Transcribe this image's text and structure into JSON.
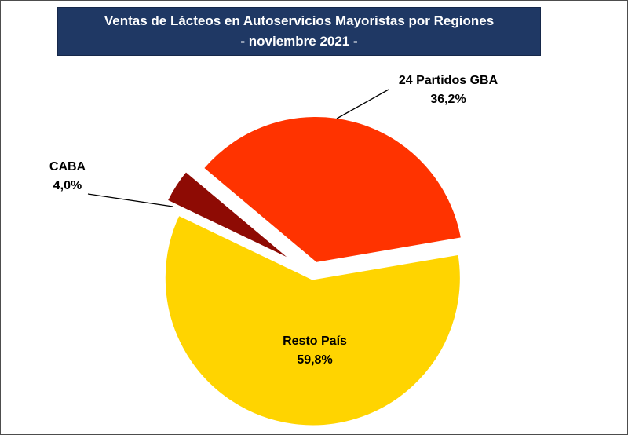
{
  "chart_data": {
    "type": "pie",
    "title": "Ventas de Lácteos en Autoservicios Mayoristas por Regiones",
    "subtitle": "- noviembre 2021 -",
    "legend_position": "none",
    "direction": "clockwise",
    "start_angle": -64.4,
    "slices": [
      {
        "label": "CABA",
        "value": 4.0,
        "pct_label": "4,0%",
        "color": "#8E0B04",
        "explode": 20
      },
      {
        "label": "24 Partidos GBA",
        "value": 36.2,
        "pct_label": "36,2%",
        "color": "#FF3300",
        "explode": 13
      },
      {
        "label": "Resto País",
        "value": 59.8,
        "pct_label": "59,8%",
        "color": "#FFD400",
        "explode": 5
      }
    ],
    "colors": {
      "title_background": "#1F3864",
      "title_text": "#FFFFFF",
      "label_text": "#000000",
      "leader_line": "#000000",
      "slice_separator": "#FFFFFF"
    }
  }
}
